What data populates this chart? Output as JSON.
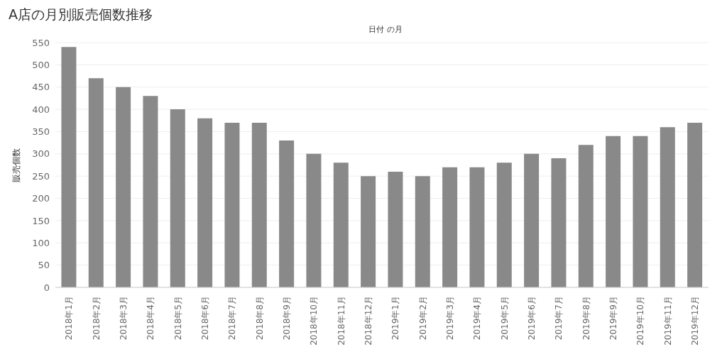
{
  "chart_data": {
    "type": "bar",
    "title": "A店の月別販売個数推移",
    "xlabel": "日付 の月",
    "ylabel": "販売個数",
    "categories": [
      "2018年1月",
      "2018年2月",
      "2018年3月",
      "2018年4月",
      "2018年5月",
      "2018年6月",
      "2018年7月",
      "2018年8月",
      "2018年9月",
      "2018年10月",
      "2018年11月",
      "2018年12月",
      "2019年1月",
      "2019年2月",
      "2019年3月",
      "2019年4月",
      "2019年5月",
      "2019年6月",
      "2019年7月",
      "2019年8月",
      "2019年9月",
      "2019年10月",
      "2019年11月",
      "2019年12月"
    ],
    "values": [
      540,
      470,
      450,
      430,
      400,
      380,
      370,
      370,
      330,
      300,
      280,
      250,
      260,
      250,
      270,
      270,
      280,
      300,
      290,
      320,
      340,
      340,
      360,
      370
    ],
    "color": "#898989",
    "ylim": [
      0,
      550
    ],
    "yticks": [
      0,
      50,
      100,
      150,
      200,
      250,
      300,
      350,
      400,
      450,
      500,
      550
    ],
    "grid": "y"
  }
}
